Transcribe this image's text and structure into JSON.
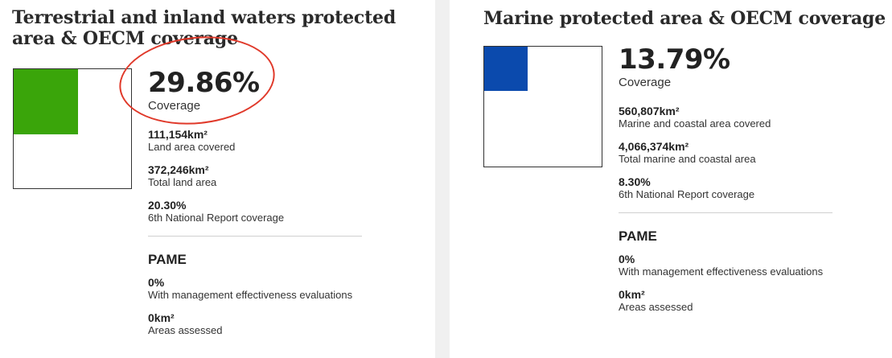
{
  "left": {
    "title": "Terrestrial and inland waters protected area & OECM coverage",
    "fill_color": "#3aa50a",
    "coverage_fraction": 0.2986,
    "coverage_pct": "29.86%",
    "coverage_label": "Coverage",
    "stats": [
      {
        "value": "111,154km²",
        "label": "Land area covered"
      },
      {
        "value": "372,246km²",
        "label": "Total land area"
      },
      {
        "value": "20.30%",
        "label": "6th National Report coverage"
      }
    ],
    "pame": {
      "title": "PAME",
      "items": [
        {
          "value": "0%",
          "label": "With management effectiveness evaluations"
        },
        {
          "value": "0km²",
          "label": "Areas assessed"
        }
      ]
    }
  },
  "right": {
    "title": "Marine protected area & OECM coverage",
    "fill_color": "#0b4aad",
    "coverage_fraction": 0.1379,
    "coverage_pct": "13.79%",
    "coverage_label": "Coverage",
    "stats": [
      {
        "value": "560,807km²",
        "label": "Marine and coastal area covered"
      },
      {
        "value": "4,066,374km²",
        "label": "Total marine and coastal area"
      },
      {
        "value": "8.30%",
        "label": "6th National Report coverage"
      }
    ],
    "pame": {
      "title": "PAME",
      "items": [
        {
          "value": "0%",
          "label": "With management effectiveness evaluations"
        },
        {
          "value": "0km²",
          "label": "Areas assessed"
        }
      ]
    }
  },
  "annotation": {
    "color": "#e0392a"
  }
}
